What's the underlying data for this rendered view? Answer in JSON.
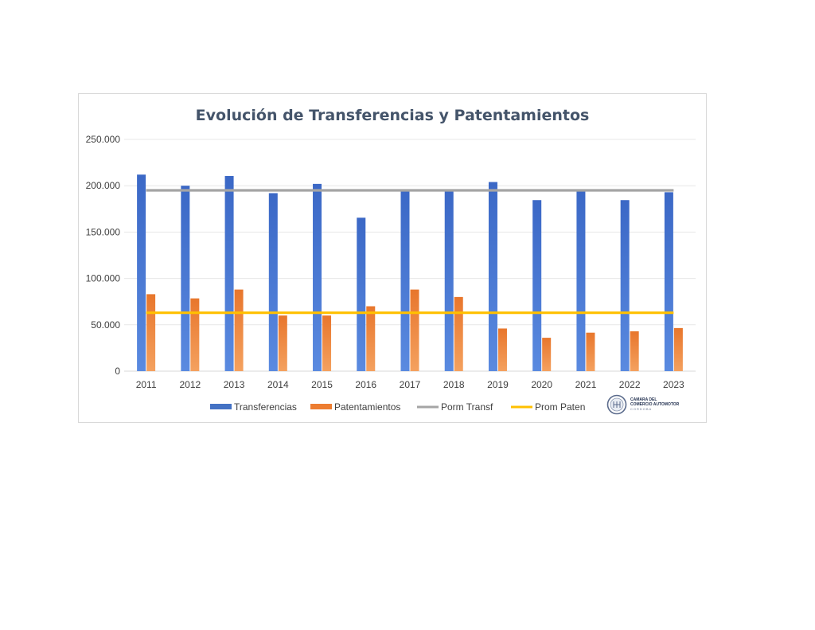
{
  "chart_data": {
    "type": "bar",
    "title": "Evolución de Transferencias y Patentamientos",
    "xlabel": "",
    "ylabel": "",
    "categories": [
      "2011",
      "2012",
      "2013",
      "2014",
      "2015",
      "2016",
      "2017",
      "2018",
      "2019",
      "2020",
      "2021",
      "2022",
      "2023"
    ],
    "series": [
      {
        "name": "Transferencias",
        "kind": "bar",
        "color": "#4472c4",
        "values": [
          212000,
          200000,
          210500,
          192000,
          202000,
          165500,
          194500,
          194000,
          204000,
          184500,
          195000,
          184500,
          193000
        ]
      },
      {
        "name": "Patentamientos",
        "kind": "bar",
        "color": "#ed7d31",
        "values": [
          83000,
          78500,
          88000,
          60000,
          60000,
          70000,
          88000,
          80000,
          46000,
          36000,
          41500,
          43000,
          46500
        ]
      },
      {
        "name": "Porm Transf",
        "kind": "line",
        "color": "#a5a5a5",
        "values": [
          195000,
          195000,
          195000,
          195000,
          195000,
          195000,
          195000,
          195000,
          195000,
          195000,
          195000,
          195000,
          195000
        ]
      },
      {
        "name": "Prom Paten",
        "kind": "line",
        "color": "#ffc000",
        "values": [
          63000,
          63000,
          63000,
          63000,
          63000,
          63000,
          63000,
          63000,
          63000,
          63000,
          63000,
          63000,
          63000
        ]
      }
    ],
    "ylim": [
      0,
      250000
    ],
    "yticks": [
      "0",
      "50.000",
      "100.000",
      "150.000",
      "200.000",
      "250.000"
    ],
    "ytick_values": [
      0,
      50000,
      100000,
      150000,
      200000,
      250000
    ],
    "grid": true,
    "legend_position": "bottom"
  },
  "logo": {
    "line1": "CAMARA DEL",
    "line2": "COMERCIO AUTOMOTOR",
    "line3": "CORDOBA"
  }
}
